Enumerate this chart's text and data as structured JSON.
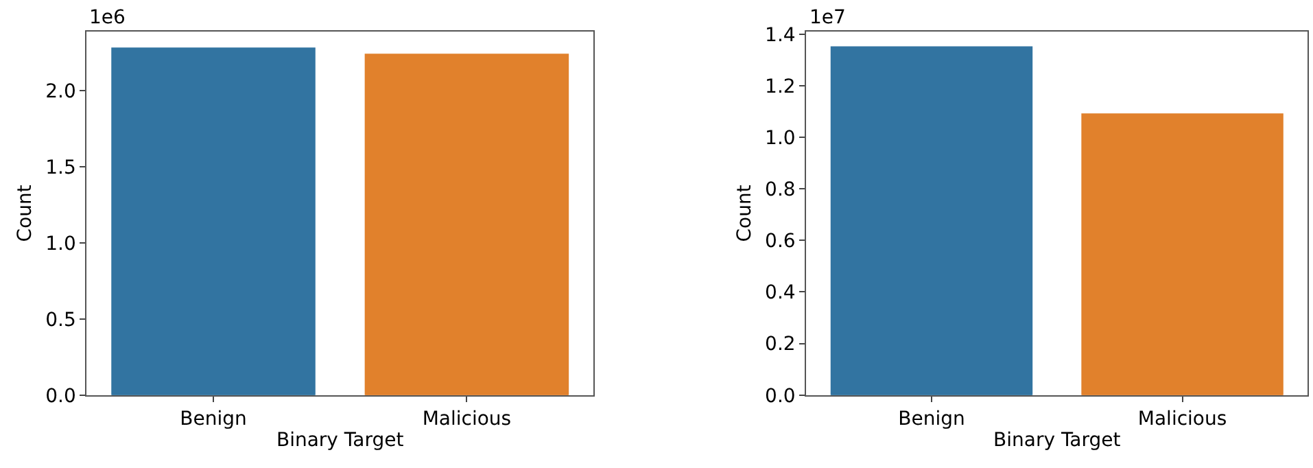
{
  "chart_data": [
    {
      "type": "bar",
      "xlabel": "Binary Target",
      "ylabel": "Count",
      "categories": [
        "Benign",
        "Malicious"
      ],
      "values": [
        2.28,
        2.24
      ],
      "colors": [
        "#3274a1",
        "#e1812c"
      ],
      "ylim": [
        0,
        2.39
      ],
      "yticks": [
        {
          "value": 0,
          "label": "0.0"
        },
        0.5,
        {
          "value": 1,
          "label": "1.0"
        },
        1.5,
        {
          "value": 2,
          "label": "2.0"
        }
      ],
      "annotations": [
        "1e6"
      ],
      "legend": false
    },
    {
      "type": "bar",
      "xlabel": "Binary Target",
      "ylabel": "Count",
      "categories": [
        "Benign",
        "Malicious"
      ],
      "values": [
        1.35,
        1.09
      ],
      "colors": [
        "#3274a1",
        "#e1812c"
      ],
      "ylim": [
        0,
        1.41
      ],
      "yticks": [
        {
          "value": 0,
          "label": "0.0"
        },
        0.2,
        0.4,
        0.6,
        0.8,
        {
          "value": 1,
          "label": "1.0"
        },
        1.2,
        1.4
      ],
      "annotations": [
        "1e7"
      ],
      "legend": false
    }
  ]
}
